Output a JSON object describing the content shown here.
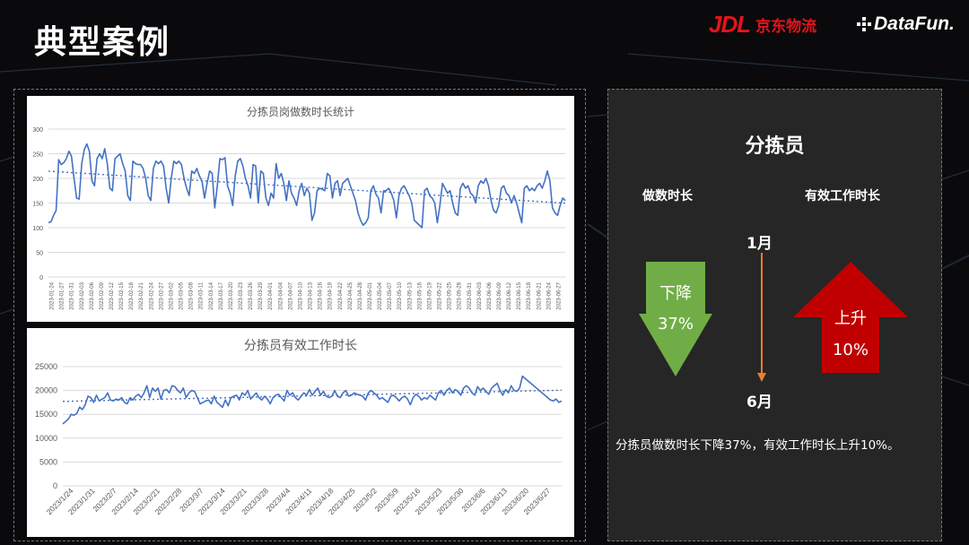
{
  "slide": {
    "title": "典型案例"
  },
  "logos": {
    "jdl_mark": "JDL",
    "jdl_text": "京东物流",
    "datafun_text": "DataFun."
  },
  "colors": {
    "line": "#4472c4",
    "down_arrow": "#70ad47",
    "up_arrow": "#c00000",
    "timeline": "#ed7d31"
  },
  "right": {
    "title": "分拣员",
    "label_left": "做数时长",
    "label_right": "有效工作时长",
    "month_start": "1月",
    "month_end": "6月",
    "down_line1": "下降",
    "down_line2": "37%",
    "up_line1": "上升",
    "up_line2": "10%",
    "conclusion": "分拣员做数时长下降37%，有效工作时长上升10%。"
  },
  "chart_data": [
    {
      "type": "line",
      "title": "分拣员岗做数时长统计",
      "ylim": [
        0,
        300
      ],
      "yticks": [
        0,
        50,
        100,
        150,
        200,
        250,
        300
      ],
      "trendline": "linear",
      "x_labels": [
        "2023-01-24",
        "2023-01-27",
        "2023-01-31",
        "2023-02-03",
        "2023-02-06",
        "2023-02-09",
        "2023-02-12",
        "2023-02-15",
        "2023-02-18",
        "2023-02-21",
        "2023-02-24",
        "2023-02-27",
        "2023-03-02",
        "2023-03-05",
        "2023-03-08",
        "2023-03-11",
        "2023-03-14",
        "2023-03-17",
        "2023-03-20",
        "2023-03-23",
        "2023-03-26",
        "2023-03-29",
        "2023-04-01",
        "2023-04-04",
        "2023-04-07",
        "2023-04-10",
        "2023-04-13",
        "2023-04-16",
        "2023-04-19",
        "2023-04-22",
        "2023-04-25",
        "2023-04-28",
        "2023-05-01",
        "2023-05-04",
        "2023-05-07",
        "2023-05-10",
        "2023-05-13",
        "2023-05-16",
        "2023-05-19",
        "2023-05-22",
        "2023-05-25",
        "2023-05-28",
        "2023-05-31",
        "2023-06-03",
        "2023-06-06",
        "2023-06-09",
        "2023-06-12",
        "2023-06-15",
        "2023-06-18",
        "2023-06-21",
        "2023-06-24",
        "2023-06-27"
      ],
      "values": [
        110,
        112,
        125,
        135,
        238,
        228,
        232,
        240,
        255,
        245,
        200,
        160,
        158,
        230,
        258,
        270,
        255,
        195,
        185,
        240,
        250,
        240,
        260,
        230,
        180,
        175,
        240,
        245,
        250,
        230,
        215,
        165,
        155,
        235,
        230,
        228,
        228,
        220,
        200,
        165,
        155,
        220,
        235,
        230,
        235,
        225,
        180,
        150,
        200,
        235,
        230,
        235,
        228,
        200,
        180,
        165,
        215,
        210,
        220,
        205,
        195,
        160,
        190,
        215,
        210,
        140,
        185,
        240,
        238,
        242,
        185,
        170,
        145,
        205,
        235,
        240,
        225,
        200,
        185,
        160,
        228,
        225,
        150,
        215,
        210,
        160,
        145,
        170,
        160,
        230,
        200,
        210,
        190,
        155,
        195,
        170,
        160,
        145,
        175,
        190,
        165,
        180,
        170,
        115,
        130,
        175,
        180,
        178,
        175,
        210,
        205,
        160,
        190,
        195,
        165,
        190,
        195,
        200,
        185,
        170,
        155,
        130,
        115,
        105,
        110,
        120,
        175,
        185,
        168,
        160,
        130,
        175,
        175,
        180,
        170,
        155,
        120,
        165,
        180,
        185,
        175,
        165,
        150,
        115,
        110,
        105,
        100,
        175,
        180,
        165,
        160,
        150,
        110,
        145,
        190,
        180,
        170,
        175,
        150,
        130,
        125,
        180,
        190,
        180,
        185,
        170,
        165,
        150,
        185,
        195,
        190,
        200,
        185,
        155,
        135,
        130,
        145,
        180,
        185,
        170,
        165,
        150,
        165,
        150,
        130,
        110,
        180,
        185,
        175,
        180,
        175,
        185,
        190,
        180,
        195,
        215,
        195,
        140,
        130,
        125,
        145,
        160,
        155
      ],
      "series": [
        {
          "name": "分拣员岗做数时长统计"
        }
      ]
    },
    {
      "type": "line",
      "title": "分拣员有效工作时长",
      "ylim": [
        0,
        25000
      ],
      "yticks": [
        0,
        5000,
        10000,
        15000,
        20000,
        25000
      ],
      "trendline": "linear",
      "x_labels": [
        "2023/1/24",
        "2023/1/31",
        "2023/2/7",
        "2023/2/14",
        "2023/2/21",
        "2023/2/28",
        "2023/3/7",
        "2023/3/14",
        "2023/3/21",
        "2023/3/28",
        "2023/4/4",
        "2023/4/11",
        "2023/4/18",
        "2023/4/25",
        "2023/5/2",
        "2023/5/9",
        "2023/5/16",
        "2023/5/23",
        "2023/5/30",
        "2023/6/6",
        "2023/6/13",
        "2023/6/20",
        "2023/6/27"
      ],
      "values": [
        13000,
        13500,
        14000,
        15000,
        14800,
        15200,
        16500,
        16000,
        17000,
        18800,
        18500,
        17500,
        19000,
        17800,
        18200,
        18500,
        19500,
        18000,
        17800,
        18200,
        18000,
        18500,
        17500,
        17200,
        18500,
        18000,
        18800,
        19200,
        18500,
        19500,
        21000,
        18500,
        20500,
        19800,
        20500,
        18200,
        20000,
        20200,
        19500,
        21000,
        20800,
        20000,
        19500,
        20500,
        18500,
        19500,
        20000,
        19800,
        18500,
        17200,
        17500,
        17800,
        18000,
        17200,
        18800,
        17500,
        17000,
        16500,
        18000,
        16800,
        18500,
        18800,
        19000,
        18000,
        19500,
        19000,
        20000,
        18200,
        18800,
        19500,
        18500,
        18000,
        18800,
        18200,
        17200,
        18500,
        19000,
        19200,
        18500,
        17800,
        20000,
        19000,
        19500,
        18500,
        18000,
        18800,
        19500,
        19000,
        20200,
        19000,
        19800,
        20500,
        19000,
        19800,
        18800,
        18500,
        18800,
        20000,
        18800,
        18500,
        19500,
        20000,
        18800,
        19000,
        19500,
        19200,
        19000,
        18800,
        18000,
        19500,
        20000,
        19500,
        19000,
        18200,
        18500,
        18000,
        17500,
        18800,
        19000,
        18500,
        17800,
        18500,
        18800,
        18200,
        17000,
        18500,
        19200,
        18800,
        18000,
        18500,
        18200,
        19000,
        18500,
        18000,
        19500,
        20000,
        19000,
        20000,
        20500,
        19500,
        20200,
        19800,
        19000,
        20500,
        21000,
        20500,
        19500,
        19000,
        20800,
        20000,
        20500,
        19800,
        19200,
        20500,
        21000,
        21500,
        20000,
        19000,
        20200,
        19500,
        21000,
        20000,
        19800,
        20500,
        23000,
        22500,
        22000,
        21500,
        21000,
        20500,
        20000,
        19500,
        19000,
        18500,
        18000,
        17800,
        18200,
        17500,
        17800
      ]
    }
  ]
}
